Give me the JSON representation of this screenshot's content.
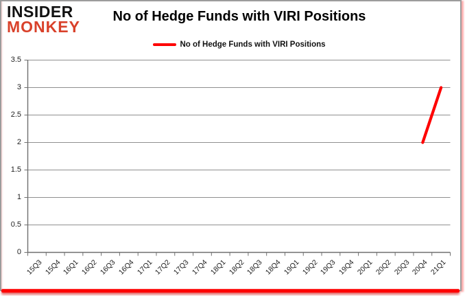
{
  "logo": {
    "line1": "INSIDER",
    "line2": "MONKEY"
  },
  "header": {
    "title": "No of Hedge Funds with VIRI Positions"
  },
  "legend": {
    "label": "No of Hedge Funds with VIRI Positions",
    "swatch_color": "#fe0000"
  },
  "colors": {
    "series": "#fe0000",
    "grid": "#8f8f8f",
    "axis": "#6f6f6f",
    "logo_red": "#d9412a",
    "border_gray": "#9c9c9c",
    "accent_bar": "#fe0000",
    "background": "#ffffff"
  },
  "chart_data": {
    "type": "line",
    "title": "No of Hedge Funds with VIRI Positions",
    "categories": [
      "15Q3",
      "15Q4",
      "16Q1",
      "16Q2",
      "16Q3",
      "16Q4",
      "17Q1",
      "17Q2",
      "17Q3",
      "17Q4",
      "18Q1",
      "18Q2",
      "18Q3",
      "18Q4",
      "19Q1",
      "19Q2",
      "19Q3",
      "19Q4",
      "20Q1",
      "20Q2",
      "20Q3",
      "20Q4",
      "21Q1"
    ],
    "series": [
      {
        "name": "No of Hedge Funds with VIRI Positions",
        "color": "#fe0000",
        "values": [
          null,
          null,
          null,
          null,
          null,
          null,
          null,
          null,
          null,
          null,
          null,
          null,
          null,
          null,
          null,
          null,
          null,
          null,
          null,
          null,
          null,
          2,
          3
        ]
      }
    ],
    "ylim": [
      0,
      3.5
    ],
    "yticks": [
      0,
      0.5,
      1,
      1.5,
      2,
      2.5,
      3,
      3.5
    ],
    "ytick_labels": [
      "0",
      "0.5",
      "1",
      "1.5",
      "2",
      "2.5",
      "3",
      "3.5"
    ],
    "grid": true,
    "legend_position": "top",
    "xlabel": "",
    "ylabel": ""
  }
}
